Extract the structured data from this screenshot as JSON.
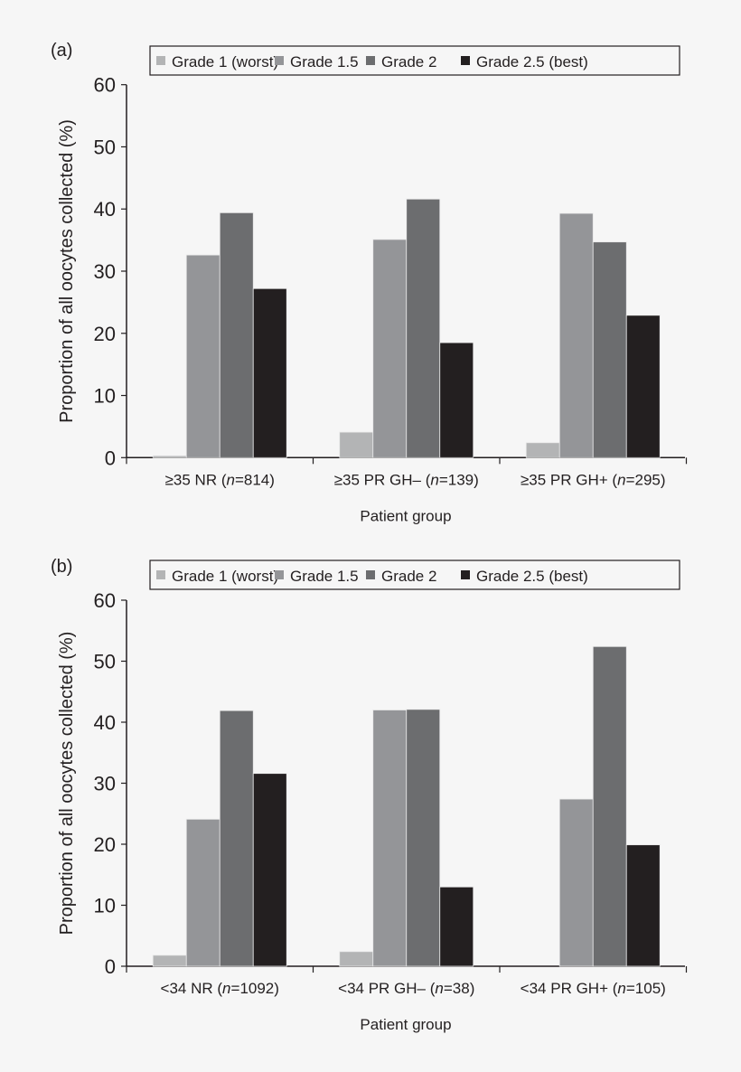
{
  "colors": {
    "grade_1": "#b3b4b5",
    "grade_1_5": "#949598",
    "grade_2": "#6c6d6f",
    "grade_2_5": "#231f20",
    "background": "#f6f6f6"
  },
  "chart_data": [
    {
      "type": "bar",
      "panel_label": "(a)",
      "xlabel": "Patient group",
      "ylabel": "Proportion of all oocytes collected (%)",
      "ylim": [
        0,
        60
      ],
      "yticks": [
        0,
        10,
        20,
        30,
        40,
        50,
        60
      ],
      "legend_placement": "top",
      "categories": [
        {
          "prefix": "≥35 NR (",
          "n": "n",
          "suffix": "=814)"
        },
        {
          "prefix": "≥35 PR GH– (",
          "n": "n",
          "suffix": "=139)"
        },
        {
          "prefix": "≥35 PR GH+ (",
          "n": "n",
          "suffix": "=295)"
        }
      ],
      "series": [
        {
          "name": "Grade 1 (worst)",
          "color": "#b3b4b5",
          "values": [
            0.3,
            4.1,
            2.4
          ]
        },
        {
          "name": "Grade 1.5",
          "color": "#949598",
          "values": [
            32.6,
            35.1,
            39.3
          ]
        },
        {
          "name": "Grade 2",
          "color": "#6c6d6f",
          "values": [
            39.4,
            41.6,
            34.7
          ]
        },
        {
          "name": "Grade 2.5 (best)",
          "color": "#231f20",
          "values": [
            27.2,
            18.5,
            22.9
          ]
        }
      ]
    },
    {
      "type": "bar",
      "panel_label": "(b)",
      "xlabel": "Patient group",
      "ylabel": "Proportion of all oocytes collected (%)",
      "ylim": [
        0,
        60
      ],
      "yticks": [
        0,
        10,
        20,
        30,
        40,
        50,
        60
      ],
      "legend_placement": "top",
      "categories": [
        {
          "prefix": "<34 NR (",
          "n": "n",
          "suffix": "=1092)"
        },
        {
          "prefix": "<34 PR GH– (",
          "n": "n",
          "suffix": "=38)"
        },
        {
          "prefix": "<34 PR GH+ (",
          "n": "n",
          "suffix": "=105)"
        }
      ],
      "series": [
        {
          "name": "Grade 1 (worst)",
          "color": "#b3b4b5",
          "values": [
            1.8,
            2.4,
            0
          ]
        },
        {
          "name": "Grade 1.5",
          "color": "#949598",
          "values": [
            24.1,
            42.0,
            27.4
          ]
        },
        {
          "name": "Grade 2",
          "color": "#6c6d6f",
          "values": [
            41.9,
            42.1,
            52.4
          ]
        },
        {
          "name": "Grade 2.5 (best)",
          "color": "#231f20",
          "values": [
            31.6,
            13.0,
            19.9
          ]
        }
      ]
    }
  ]
}
